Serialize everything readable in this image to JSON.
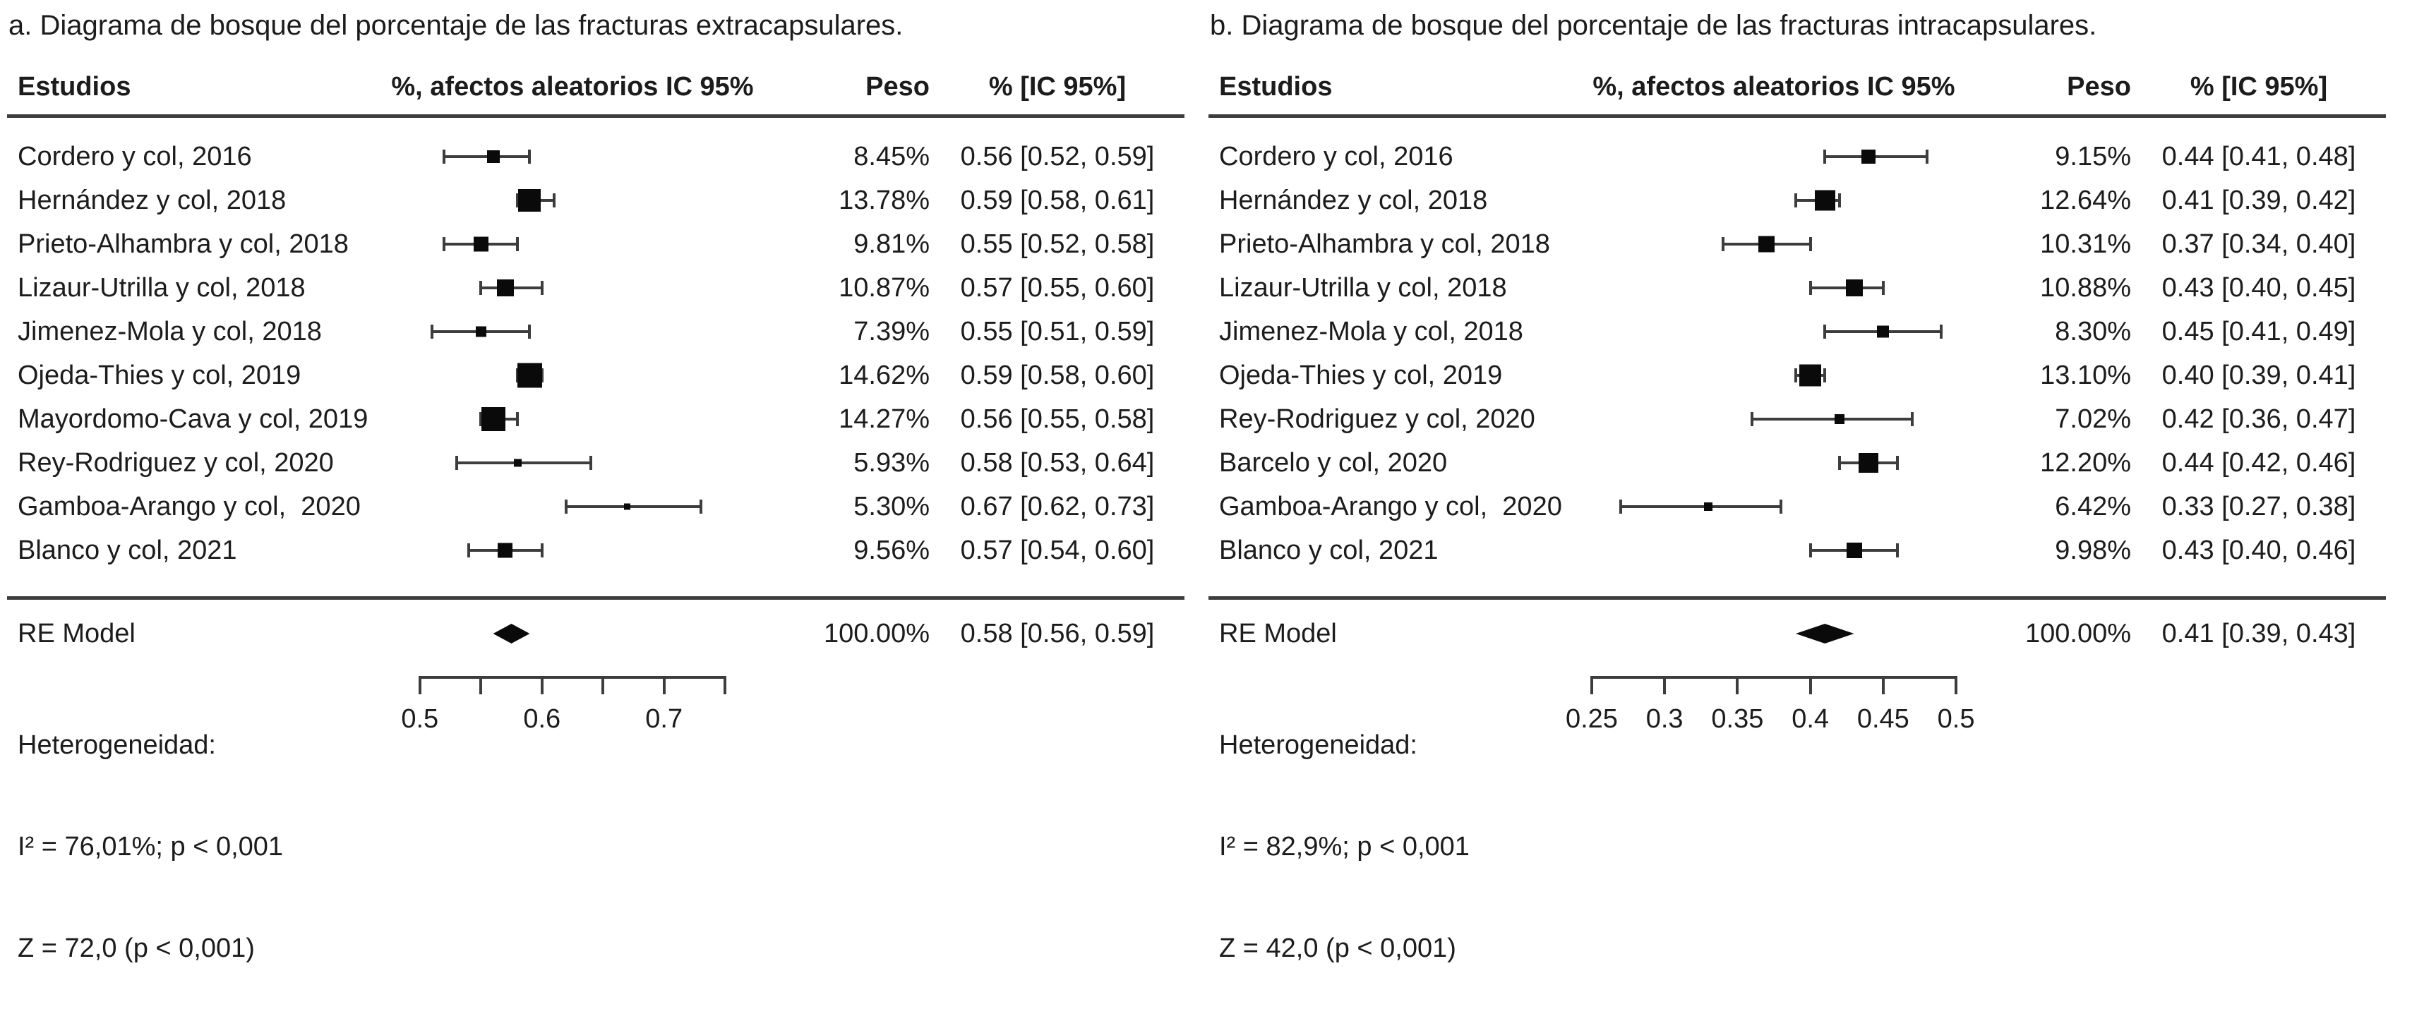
{
  "chart_data": [
    {
      "type": "forest",
      "title": "a. Diagrama de bosque del porcentaje de las fracturas extracapsulares.",
      "columns": {
        "studies": "Estudios",
        "plot": "%, afectos aleatorios IC 95%",
        "weight": "Peso",
        "ci": "% [IC 95%]"
      },
      "axis": {
        "min": 0.5,
        "max": 0.75,
        "plot_min": 0.44,
        "plot_max": 0.81,
        "ticks": [
          {
            "v": 0.5,
            "label": "0.5"
          },
          {
            "v": 0.55,
            "label": ""
          },
          {
            "v": 0.6,
            "label": "0.6"
          },
          {
            "v": 0.65,
            "label": ""
          },
          {
            "v": 0.7,
            "label": "0.7"
          },
          {
            "v": 0.75,
            "label": ""
          }
        ]
      },
      "studies": [
        {
          "label": "Cordero y col, 2016",
          "weight": 8.45,
          "weight_text": "8.45%",
          "est": 0.56,
          "lo": 0.52,
          "hi": 0.59,
          "ci_text": "0.56 [0.52, 0.59]"
        },
        {
          "label": "Hernández y col, 2018",
          "weight": 13.78,
          "weight_text": "13.78%",
          "est": 0.59,
          "lo": 0.58,
          "hi": 0.61,
          "ci_text": "0.59 [0.58, 0.61]"
        },
        {
          "label": "Prieto-Alhambra y col, 2018",
          "weight": 9.81,
          "weight_text": "9.81%",
          "est": 0.55,
          "lo": 0.52,
          "hi": 0.58,
          "ci_text": "0.55 [0.52, 0.58]"
        },
        {
          "label": "Lizaur-Utrilla y col, 2018",
          "weight": 10.87,
          "weight_text": "10.87%",
          "est": 0.57,
          "lo": 0.55,
          "hi": 0.6,
          "ci_text": "0.57 [0.55, 0.60]"
        },
        {
          "label": "Jimenez-Mola y col, 2018",
          "weight": 7.39,
          "weight_text": "7.39%",
          "est": 0.55,
          "lo": 0.51,
          "hi": 0.59,
          "ci_text": "0.55 [0.51, 0.59]"
        },
        {
          "label": "Ojeda-Thies y col, 2019",
          "weight": 14.62,
          "weight_text": "14.62%",
          "est": 0.59,
          "lo": 0.58,
          "hi": 0.6,
          "ci_text": "0.59 [0.58, 0.60]"
        },
        {
          "label": "Mayordomo-Cava y col, 2019",
          "weight": 14.27,
          "weight_text": "14.27%",
          "est": 0.56,
          "lo": 0.55,
          "hi": 0.58,
          "ci_text": "0.56 [0.55, 0.58]"
        },
        {
          "label": "Rey-Rodriguez y col, 2020",
          "weight": 5.93,
          "weight_text": "5.93%",
          "est": 0.58,
          "lo": 0.53,
          "hi": 0.64,
          "ci_text": "0.58 [0.53, 0.64]"
        },
        {
          "label": "Gamboa-Arango y col,  2020",
          "weight": 5.3,
          "weight_text": "5.30%",
          "est": 0.67,
          "lo": 0.62,
          "hi": 0.73,
          "ci_text": "0.67 [0.62, 0.73]"
        },
        {
          "label": "Blanco y col, 2021",
          "weight": 9.56,
          "weight_text": "9.56%",
          "est": 0.57,
          "lo": 0.54,
          "hi": 0.6,
          "ci_text": "0.57 [0.54, 0.60]"
        }
      ],
      "summary": {
        "label": "RE Model",
        "weight_text": "100.00%",
        "est": 0.58,
        "lo": 0.56,
        "hi": 0.59,
        "ci_text": "0.58 [0.56, 0.59]"
      },
      "heterogeneity": [
        "Heterogeneidad:",
        "I² = 76,01%; p < 0,001",
        "Z = 72,0 (p < 0,001)"
      ]
    },
    {
      "type": "forest",
      "title": "b. Diagrama de bosque del porcentaje de las fracturas intracapsulares.",
      "columns": {
        "studies": "Estudios",
        "plot": "%, afectos aleatorios IC 95%",
        "weight": "Peso",
        "ci": "% [IC 95%]"
      },
      "axis": {
        "min": 0.25,
        "max": 0.5,
        "plot_min": 0.22,
        "plot_max": 0.53,
        "ticks": [
          {
            "v": 0.25,
            "label": "0.25"
          },
          {
            "v": 0.3,
            "label": "0.3"
          },
          {
            "v": 0.35,
            "label": "0.35"
          },
          {
            "v": 0.4,
            "label": "0.4"
          },
          {
            "v": 0.45,
            "label": "0.45"
          },
          {
            "v": 0.5,
            "label": "0.5"
          }
        ]
      },
      "studies": [
        {
          "label": "Cordero y col, 2016",
          "weight": 9.15,
          "weight_text": "9.15%",
          "est": 0.44,
          "lo": 0.41,
          "hi": 0.48,
          "ci_text": "0.44 [0.41, 0.48]"
        },
        {
          "label": "Hernández y col, 2018",
          "weight": 12.64,
          "weight_text": "12.64%",
          "est": 0.41,
          "lo": 0.39,
          "hi": 0.42,
          "ci_text": "0.41 [0.39, 0.42]"
        },
        {
          "label": "Prieto-Alhambra y col, 2018",
          "weight": 10.31,
          "weight_text": "10.31%",
          "est": 0.37,
          "lo": 0.34,
          "hi": 0.4,
          "ci_text": "0.37 [0.34, 0.40]"
        },
        {
          "label": "Lizaur-Utrilla y col, 2018",
          "weight": 10.88,
          "weight_text": "10.88%",
          "est": 0.43,
          "lo": 0.4,
          "hi": 0.45,
          "ci_text": "0.43 [0.40, 0.45]"
        },
        {
          "label": "Jimenez-Mola y col, 2018",
          "weight": 8.3,
          "weight_text": "8.30%",
          "est": 0.45,
          "lo": 0.41,
          "hi": 0.49,
          "ci_text": "0.45 [0.41, 0.49]"
        },
        {
          "label": "Ojeda-Thies y col, 2019",
          "weight": 13.1,
          "weight_text": "13.10%",
          "est": 0.4,
          "lo": 0.39,
          "hi": 0.41,
          "ci_text": "0.40 [0.39, 0.41]"
        },
        {
          "label": "Rey-Rodriguez y col, 2020",
          "weight": 7.02,
          "weight_text": "7.02%",
          "est": 0.42,
          "lo": 0.36,
          "hi": 0.47,
          "ci_text": "0.42 [0.36, 0.47]"
        },
        {
          "label": "Barcelo y col, 2020",
          "weight": 12.2,
          "weight_text": "12.20%",
          "est": 0.44,
          "lo": 0.42,
          "hi": 0.46,
          "ci_text": "0.44 [0.42, 0.46]"
        },
        {
          "label": "Gamboa-Arango y col,  2020",
          "weight": 6.42,
          "weight_text": "6.42%",
          "est": 0.33,
          "lo": 0.27,
          "hi": 0.38,
          "ci_text": "0.33 [0.27, 0.38]"
        },
        {
          "label": "Blanco y col, 2021",
          "weight": 9.98,
          "weight_text": "9.98%",
          "est": 0.43,
          "lo": 0.4,
          "hi": 0.46,
          "ci_text": "0.43 [0.40, 0.46]"
        }
      ],
      "summary": {
        "label": "RE Model",
        "weight_text": "100.00%",
        "est": 0.41,
        "lo": 0.39,
        "hi": 0.43,
        "ci_text": "0.41 [0.39, 0.43]"
      },
      "heterogeneity": [
        "Heterogeneidad:",
        "I² = 82,9%; p < 0,001",
        "Z = 42,0 (p < 0,001)"
      ]
    }
  ]
}
